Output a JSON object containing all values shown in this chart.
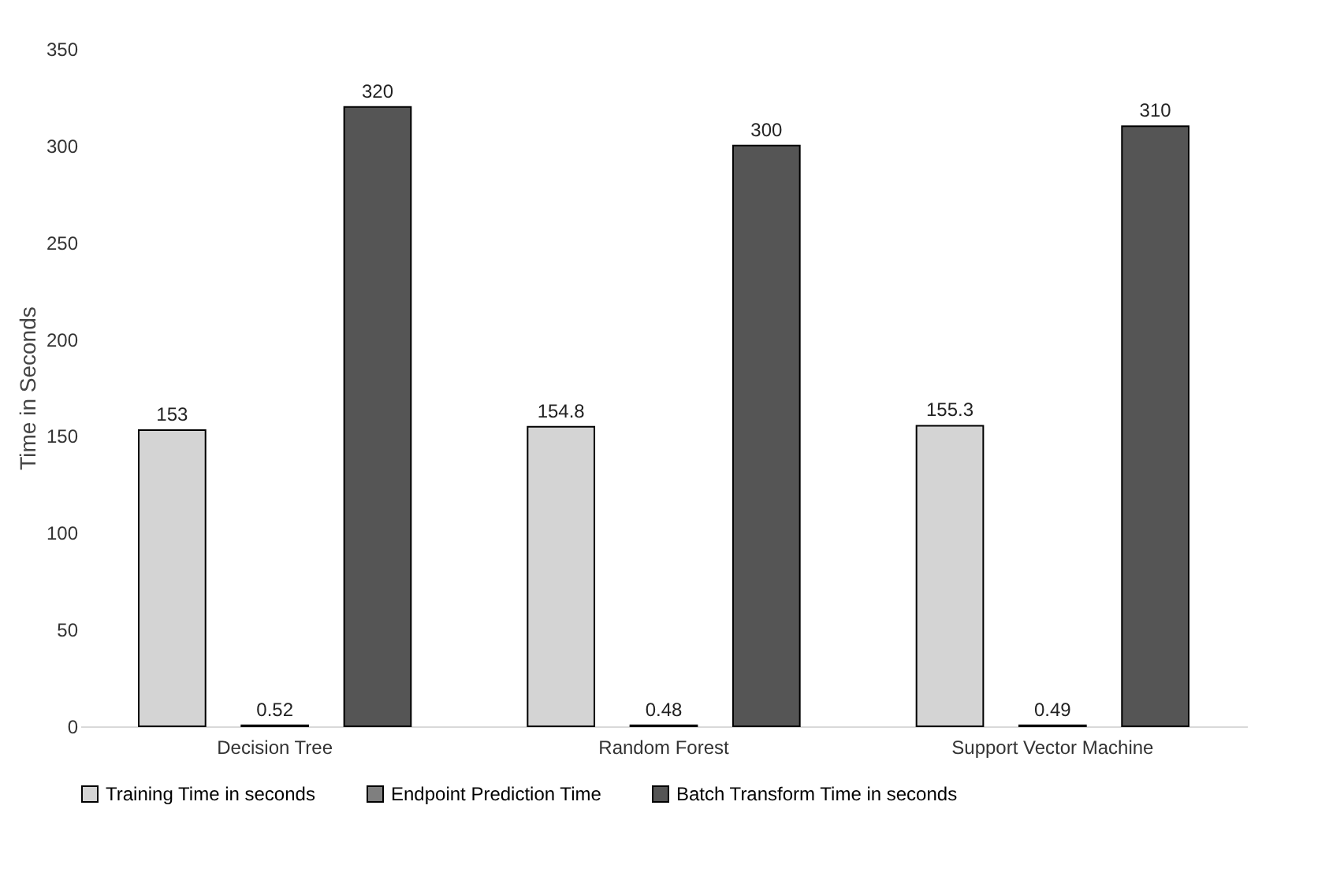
{
  "chart_data": {
    "type": "bar",
    "ylabel": "Time in Seconds",
    "categories": [
      "Decision Tree",
      "Random Forest",
      "Support Vector Machine"
    ],
    "series": [
      {
        "name": "Training Time in seconds",
        "color": "#d4d4d4",
        "values": [
          153,
          154.8,
          155.3
        ]
      },
      {
        "name": "Endpoint Prediction Time",
        "color": "#7f7f7f",
        "values": [
          0.52,
          0.48,
          0.49
        ]
      },
      {
        "name": "Batch Transform Time in seconds",
        "color": "#555555",
        "values": [
          320,
          300,
          310
        ]
      }
    ],
    "ylim": [
      0,
      350
    ],
    "yticks": [
      0,
      50,
      100,
      150,
      200,
      250,
      300,
      350
    ],
    "data_labels": true,
    "grid": false,
    "legend": "bottom"
  }
}
